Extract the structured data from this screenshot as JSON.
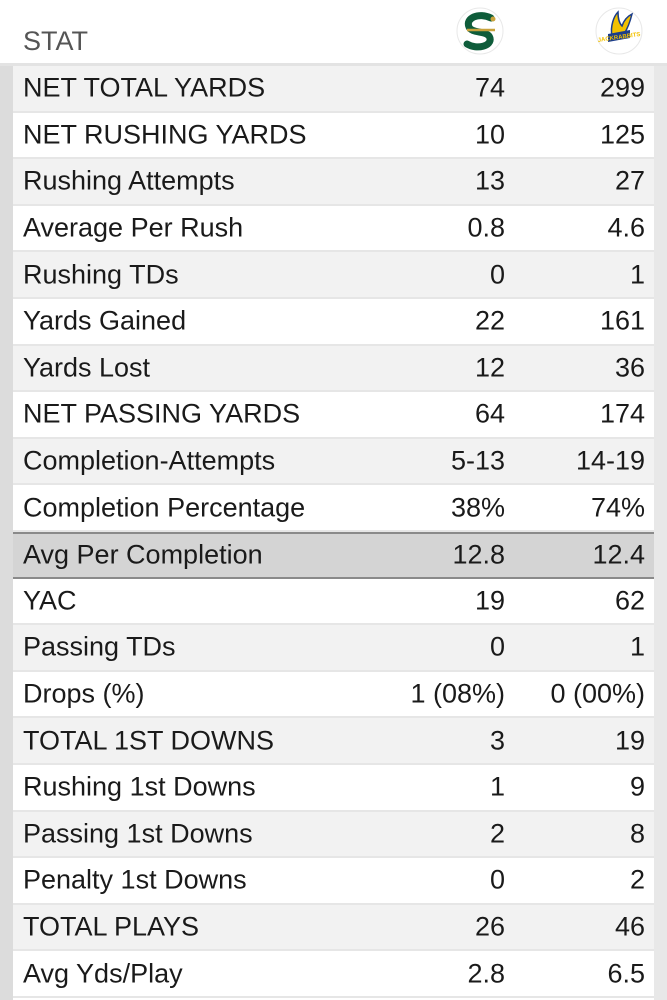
{
  "header": {
    "stat_label": "STAT",
    "home_logo_icon": "sacramento-state-hornets-logo",
    "away_logo_icon": "south-dakota-state-jackrabbits-logo",
    "away_logo_text": "JACKRABBITS"
  },
  "colors": {
    "home_green": "#0e5c3a",
    "home_gold": "#c8a23c",
    "away_gold": "#f2c100",
    "away_blue": "#1b3d8a",
    "highlight_row": "#d4d4d4"
  },
  "rows": [
    {
      "stat": "NET TOTAL YARDS",
      "home": "74",
      "away": "299"
    },
    {
      "stat": "NET RUSHING YARDS",
      "home": "10",
      "away": "125"
    },
    {
      "stat": "Rushing Attempts",
      "home": "13",
      "away": "27"
    },
    {
      "stat": "Average Per Rush",
      "home": "0.8",
      "away": "4.6"
    },
    {
      "stat": "Rushing TDs",
      "home": "0",
      "away": "1"
    },
    {
      "stat": "Yards Gained",
      "home": "22",
      "away": "161"
    },
    {
      "stat": "Yards Lost",
      "home": "12",
      "away": "36"
    },
    {
      "stat": "NET PASSING YARDS",
      "home": "64",
      "away": "174"
    },
    {
      "stat": "Completion-Attempts",
      "home": "5-13",
      "away": "14-19"
    },
    {
      "stat": "Completion Percentage",
      "home": "38%",
      "away": "74%"
    },
    {
      "stat": "Avg Per Completion",
      "home": "12.8",
      "away": "12.4"
    },
    {
      "stat": "YAC",
      "home": "19",
      "away": "62"
    },
    {
      "stat": "Passing TDs",
      "home": "0",
      "away": "1"
    },
    {
      "stat": "Drops (%)",
      "home": "1 (08%)",
      "away": "0 (00%)"
    },
    {
      "stat": "TOTAL 1ST DOWNS",
      "home": "3",
      "away": "19"
    },
    {
      "stat": "Rushing 1st Downs",
      "home": "1",
      "away": "9"
    },
    {
      "stat": "Passing 1st Downs",
      "home": "2",
      "away": "8"
    },
    {
      "stat": "Penalty 1st Downs",
      "home": "0",
      "away": "2"
    },
    {
      "stat": "TOTAL PLAYS",
      "home": "26",
      "away": "46"
    },
    {
      "stat": "Avg Yds/Play",
      "home": "2.8",
      "away": "6.5"
    }
  ]
}
